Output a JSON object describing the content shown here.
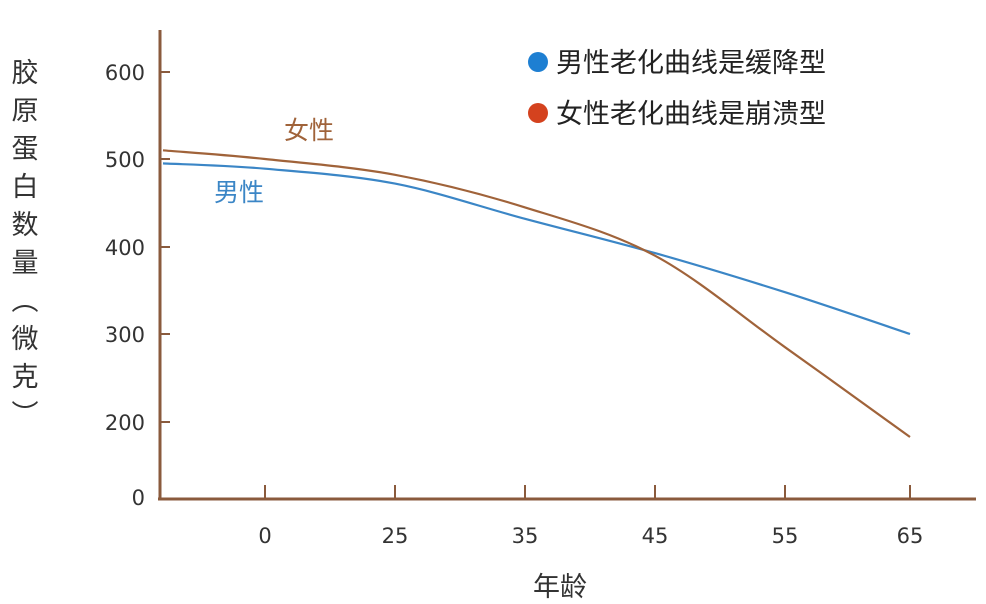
{
  "chart_data": {
    "type": "line",
    "title": "",
    "xlabel": "年龄",
    "ylabel": "胶原蛋白数量（微克）",
    "x_ticks": [
      "0",
      "25",
      "35",
      "45",
      "55",
      "65"
    ],
    "y_ticks": [
      "0",
      "200",
      "300",
      "400",
      "500",
      "600"
    ],
    "grid": false,
    "legend_position": "top-right",
    "legend": [
      {
        "text": "男性老化曲线是缓降型",
        "color": "#1e7fd2"
      },
      {
        "text": "女性老化曲线是崩溃型",
        "color": "#d4421e"
      }
    ],
    "series": [
      {
        "name": "男性",
        "color": "#3b86c6",
        "points": [
          {
            "x": "start",
            "y": 495
          },
          {
            "x": "0",
            "y": 489
          },
          {
            "x": "25",
            "y": 472
          },
          {
            "x": "35",
            "y": 432
          },
          {
            "x": "45",
            "y": 393
          },
          {
            "x": "55",
            "y": 348
          },
          {
            "x": "65",
            "y": 300
          }
        ]
      },
      {
        "name": "女性",
        "color": "#a0633a",
        "points": [
          {
            "x": "start",
            "y": 510
          },
          {
            "x": "0",
            "y": 500
          },
          {
            "x": "25",
            "y": 482
          },
          {
            "x": "35",
            "y": 445
          },
          {
            "x": "45",
            "y": 390
          },
          {
            "x": "55",
            "y": 285
          },
          {
            "x": "65",
            "y": 160
          }
        ]
      }
    ],
    "series_labels": [
      {
        "text": "女性",
        "color": "#a0633a"
      },
      {
        "text": "男性",
        "color": "#3b86c6"
      }
    ]
  }
}
